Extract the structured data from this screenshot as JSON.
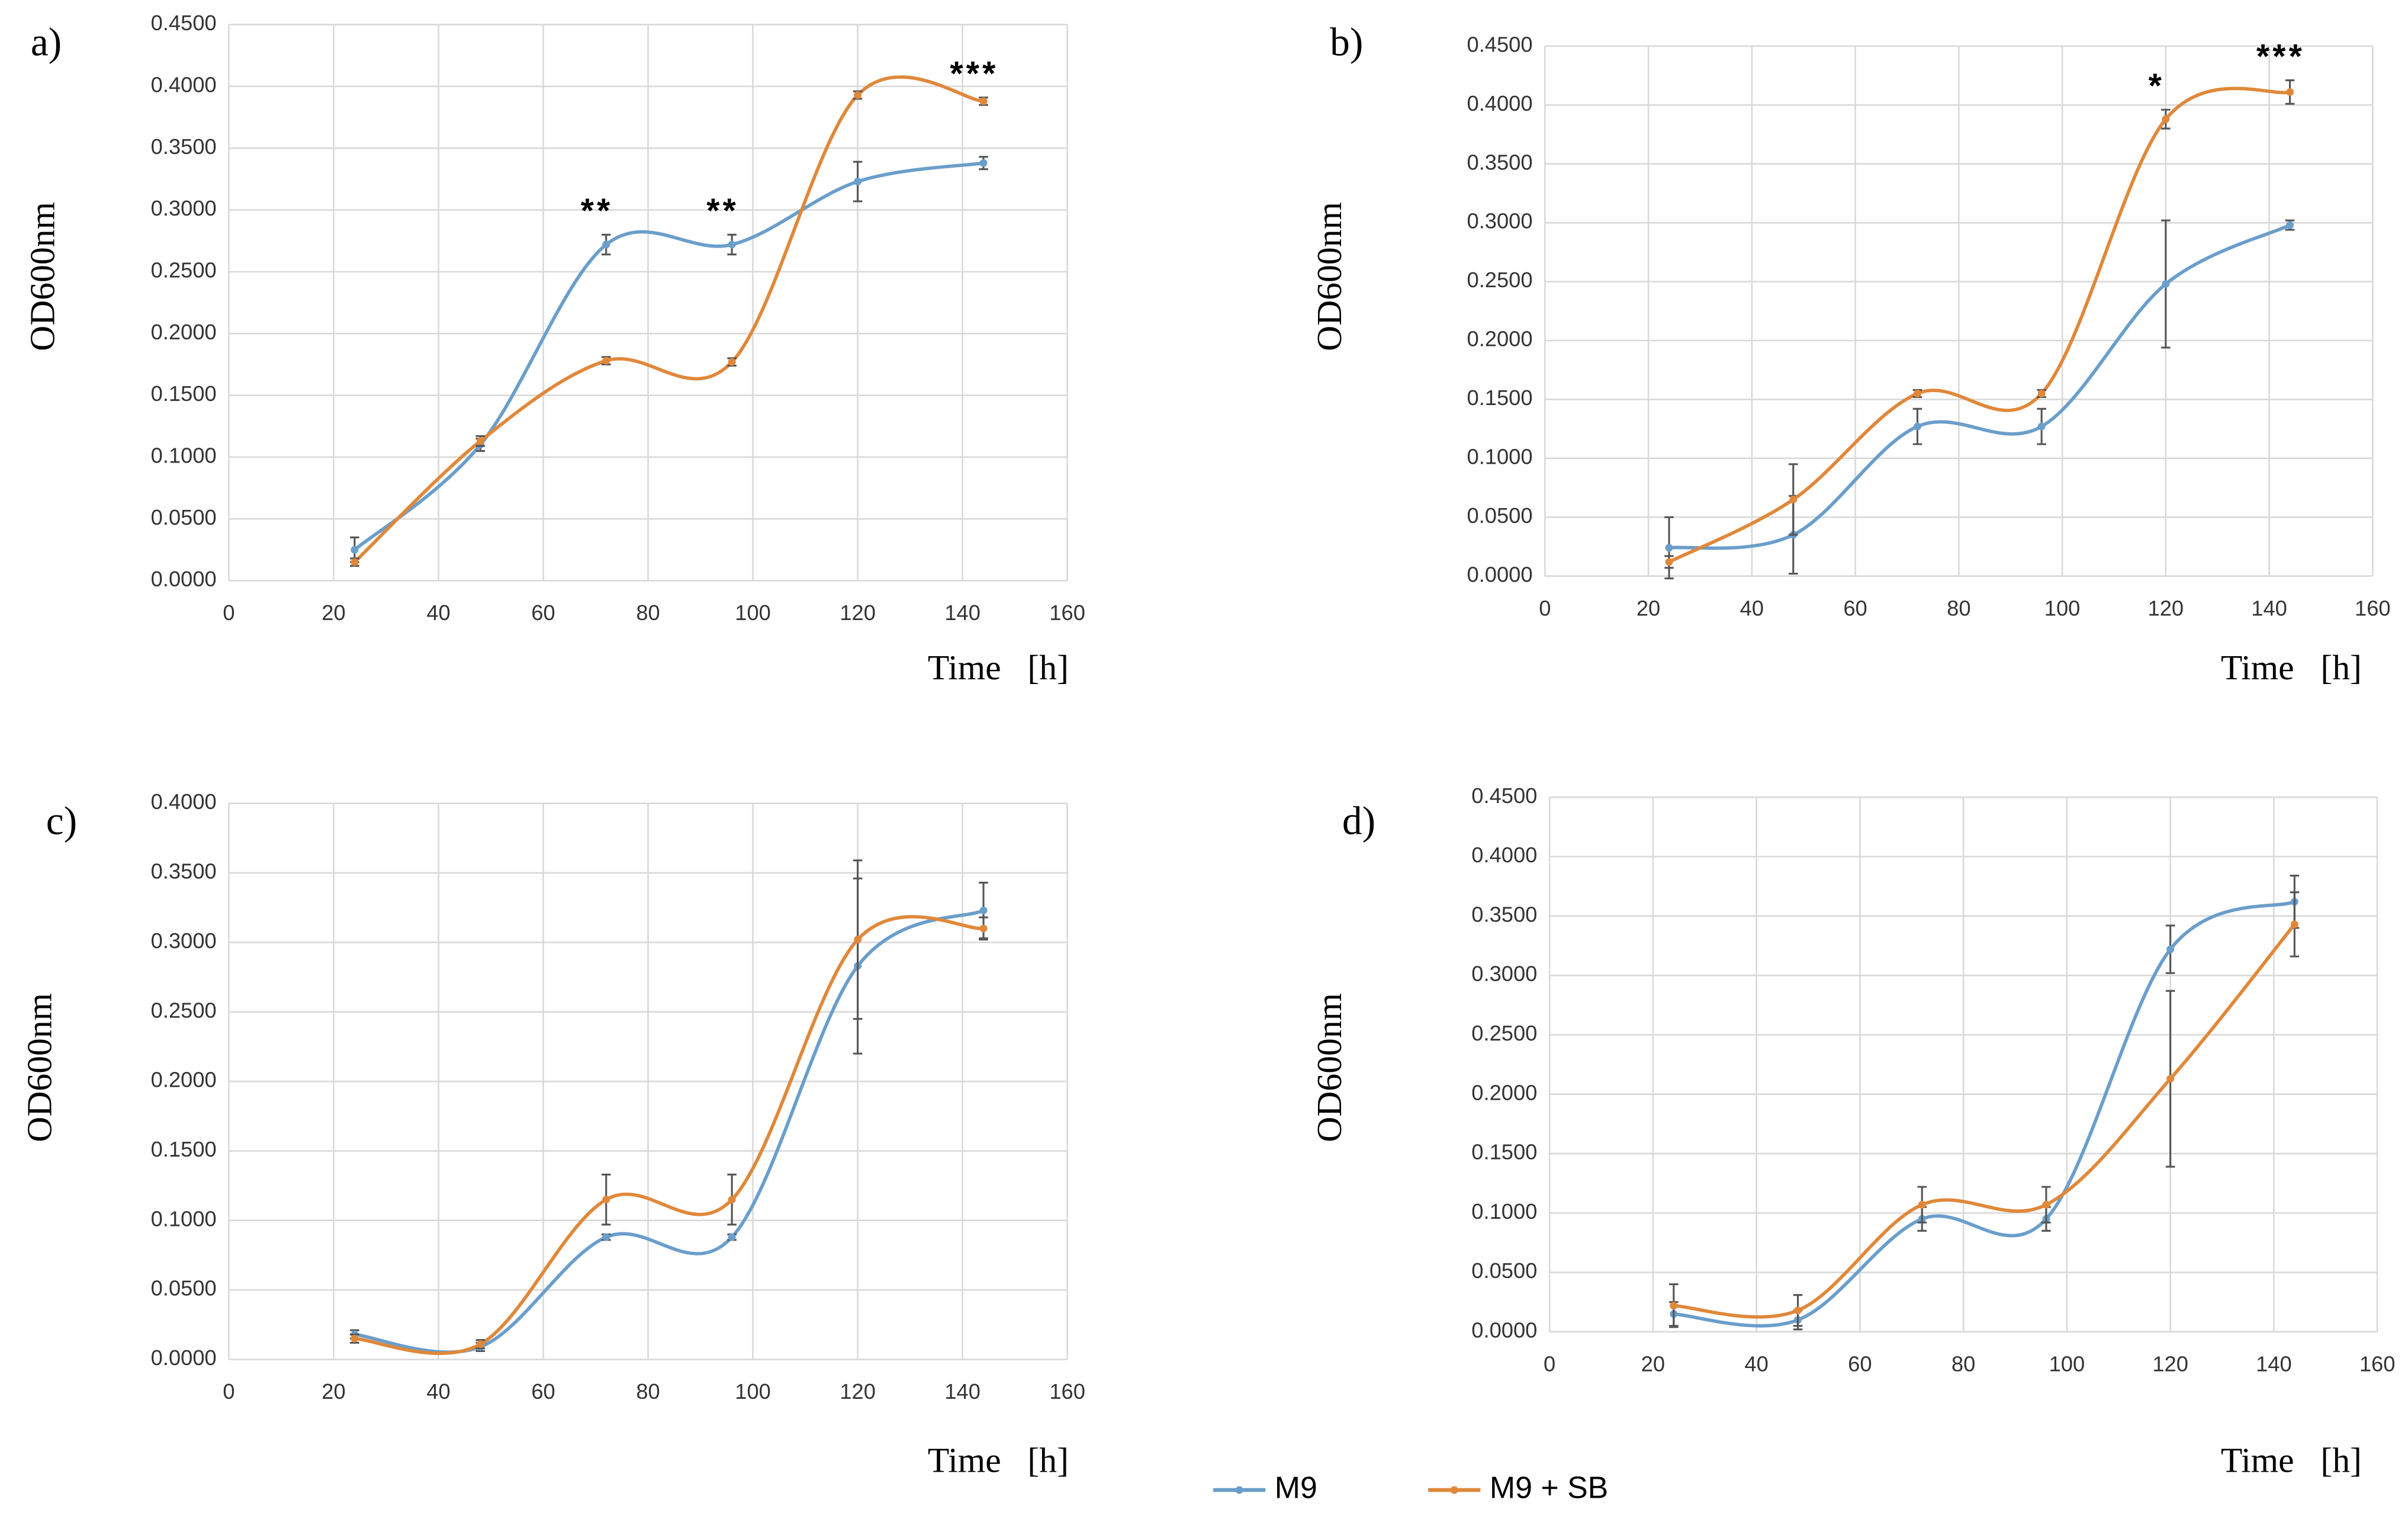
{
  "chart_data": [
    {
      "type": "line",
      "panel_label": "a)",
      "xlabel": "Time   [h]",
      "ylabel": "OD600nm",
      "xlim": [
        0,
        160
      ],
      "xticks": [
        0,
        20,
        40,
        60,
        80,
        100,
        120,
        140,
        160
      ],
      "ylim": [
        0,
        0.45
      ],
      "yticks": [
        {
          "value": 0,
          "label": "0.0000"
        },
        {
          "value": 0.05,
          "label": "0.0500"
        },
        {
          "value": 0.1,
          "label": "0.1000"
        },
        {
          "value": 0.15,
          "label": "0.1500"
        },
        {
          "value": 0.2,
          "label": "0.2000"
        },
        {
          "value": 0.25,
          "label": "0.2500"
        },
        {
          "value": 0.3,
          "label": "0.3000"
        },
        {
          "value": 0.35,
          "label": "0.3500"
        },
        {
          "value": 0.4,
          "label": "0.4000"
        },
        {
          "value": 0.45,
          "label": "0.4500"
        }
      ],
      "grid": true,
      "x": [
        24,
        48,
        72,
        96,
        120,
        144
      ],
      "series": [
        {
          "name": "M9",
          "color": "#6a9ecb",
          "values": [
            0.025,
            0.11,
            0.272,
            0.272,
            0.323,
            0.338
          ],
          "errors": [
            0.01,
            0.005,
            0.008,
            0.008,
            0.016,
            0.005
          ]
        },
        {
          "name": "M9 + SB",
          "color": "#e0883a",
          "values": [
            0.015,
            0.113,
            0.178,
            0.177,
            0.393,
            0.388
          ],
          "errors": [
            0.003,
            0.004,
            0.003,
            0.003,
            0.003,
            0.003
          ]
        }
      ],
      "annotations": [
        {
          "text": "**",
          "x": 72
        },
        {
          "text": "**",
          "x": 96
        },
        {
          "text": "***",
          "x": 144
        }
      ]
    },
    {
      "type": "line",
      "panel_label": "b)",
      "xlabel": "Time   [h]",
      "ylabel": "OD600nm",
      "xlim": [
        0,
        160
      ],
      "xticks": [
        0,
        20,
        40,
        60,
        80,
        100,
        120,
        140,
        160
      ],
      "ylim": [
        0,
        0.45
      ],
      "yticks": [
        {
          "value": 0,
          "label": "0.0000"
        },
        {
          "value": 0.05,
          "label": "0.0500"
        },
        {
          "value": 0.1,
          "label": "0.1000"
        },
        {
          "value": 0.15,
          "label": "0.1500"
        },
        {
          "value": 0.2,
          "label": "0.2000"
        },
        {
          "value": 0.25,
          "label": "0.2500"
        },
        {
          "value": 0.3,
          "label": "0.3000"
        },
        {
          "value": 0.35,
          "label": "0.3500"
        },
        {
          "value": 0.4,
          "label": "0.4000"
        },
        {
          "value": 0.45,
          "label": "0.4500"
        }
      ],
      "grid": true,
      "x": [
        24,
        48,
        72,
        96,
        120,
        144
      ],
      "series": [
        {
          "name": "M9",
          "color": "#6a9ecb",
          "values": [
            0.024,
            0.035,
            0.127,
            0.127,
            0.248,
            0.298
          ],
          "errors": [
            0.026,
            0.033,
            0.015,
            0.015,
            0.054,
            0.004
          ]
        },
        {
          "name": "M9 + SB",
          "color": "#e0883a",
          "values": [
            0.012,
            0.065,
            0.155,
            0.155,
            0.388,
            0.411
          ],
          "errors": [
            0.005,
            0.03,
            0.003,
            0.003,
            0.008,
            0.01
          ]
        }
      ],
      "annotations": [
        {
          "text": "*",
          "x": 120
        },
        {
          "text": "***",
          "x": 144
        }
      ]
    },
    {
      "type": "line",
      "panel_label": "c)",
      "xlabel": "Time   [h]",
      "ylabel": "OD600nm",
      "xlim": [
        0,
        160
      ],
      "xticks": [
        0,
        20,
        40,
        60,
        80,
        100,
        120,
        140,
        160
      ],
      "ylim": [
        0,
        0.4
      ],
      "yticks": [
        {
          "value": 0,
          "label": "0.0000"
        },
        {
          "value": 0.05,
          "label": "0.0500"
        },
        {
          "value": 0.1,
          "label": "0.1000"
        },
        {
          "value": 0.15,
          "label": "0.1500"
        },
        {
          "value": 0.2,
          "label": "0.2000"
        },
        {
          "value": 0.25,
          "label": "0.2500"
        },
        {
          "value": 0.3,
          "label": "0.3000"
        },
        {
          "value": 0.35,
          "label": "0.3500"
        },
        {
          "value": 0.4,
          "label": "0.4000"
        }
      ],
      "grid": true,
      "x": [
        24,
        48,
        72,
        96,
        120,
        144
      ],
      "series": [
        {
          "name": "M9",
          "color": "#6a9ecb",
          "values": [
            0.018,
            0.009,
            0.088,
            0.088,
            0.283,
            0.323
          ],
          "errors": [
            0.003,
            0.003,
            0.002,
            0.002,
            0.063,
            0.02
          ]
        },
        {
          "name": "M9 + SB",
          "color": "#e0883a",
          "values": [
            0.015,
            0.011,
            0.115,
            0.115,
            0.302,
            0.31
          ],
          "errors": [
            0.003,
            0.003,
            0.018,
            0.018,
            0.057,
            0.008
          ]
        }
      ],
      "annotations": []
    },
    {
      "type": "line",
      "panel_label": "d)",
      "xlabel": "Time   [h]",
      "ylabel": "OD600nm",
      "xlim": [
        0,
        160
      ],
      "xticks": [
        0,
        20,
        40,
        60,
        80,
        100,
        120,
        140,
        160
      ],
      "ylim": [
        0,
        0.45
      ],
      "yticks": [
        {
          "value": 0,
          "label": "0.0000"
        },
        {
          "value": 0.05,
          "label": "0.0500"
        },
        {
          "value": 0.1,
          "label": "0.1000"
        },
        {
          "value": 0.15,
          "label": "0.1500"
        },
        {
          "value": 0.2,
          "label": "0.2000"
        },
        {
          "value": 0.25,
          "label": "0.2500"
        },
        {
          "value": 0.3,
          "label": "0.3000"
        },
        {
          "value": 0.35,
          "label": "0.3500"
        },
        {
          "value": 0.4,
          "label": "0.4000"
        },
        {
          "value": 0.45,
          "label": "0.4500"
        }
      ],
      "grid": true,
      "x": [
        24,
        48,
        72,
        96,
        120,
        144
      ],
      "series": [
        {
          "name": "M9",
          "color": "#6a9ecb",
          "values": [
            0.015,
            0.01,
            0.095,
            0.095,
            0.322,
            0.362
          ],
          "errors": [
            0.01,
            0.008,
            0.01,
            0.01,
            0.02,
            0.022
          ]
        },
        {
          "name": "M9 + SB",
          "color": "#e0883a",
          "values": [
            0.022,
            0.018,
            0.107,
            0.107,
            0.213,
            0.343
          ],
          "errors": [
            0.018,
            0.013,
            0.015,
            0.015,
            0.074,
            0.027
          ]
        }
      ],
      "annotations": []
    }
  ]
}
